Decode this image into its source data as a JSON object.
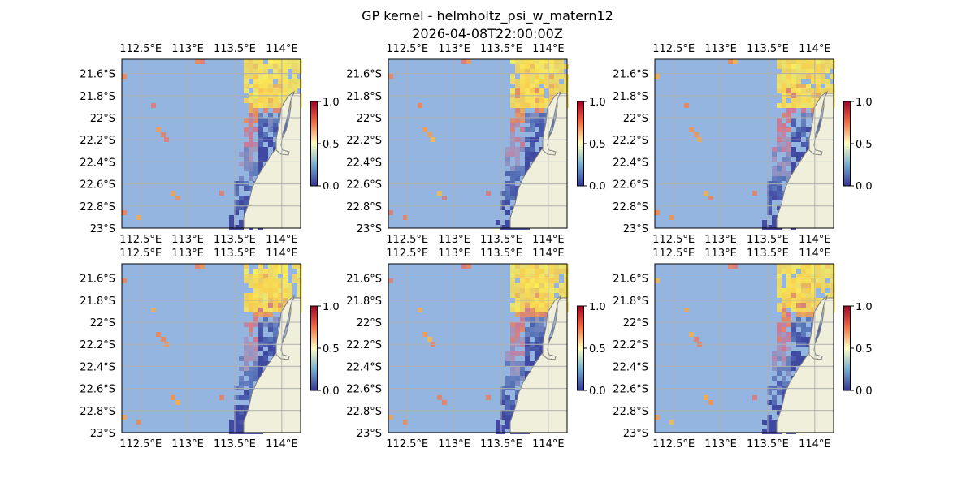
{
  "figure": {
    "title_line1": "GP kernel - helmholtz_psi_w_matern12",
    "title_line2": "2026-04-08T22:00:00Z"
  },
  "map": {
    "lon_range": [
      112.3,
      114.2
    ],
    "lat_range": [
      -23.0,
      -21.47
    ],
    "lon_ticks": [
      "112.5°E",
      "113°E",
      "113.5°E",
      "114°E"
    ],
    "lon_tick_values": [
      112.5,
      113.0,
      113.5,
      114.0
    ],
    "lat_ticks": [
      "21.6°S",
      "21.8°S",
      "22°S",
      "22.2°S",
      "22.4°S",
      "22.6°S",
      "22.8°S",
      "23°S"
    ],
    "lat_tick_values": [
      -21.6,
      -21.8,
      -22.0,
      -22.2,
      -22.4,
      -22.6,
      -22.8,
      -23.0
    ],
    "ocean_color": "#94b5e0",
    "land_color": "#efefdc",
    "gridline_color": "#b0b0b0"
  },
  "colorbar": {
    "ticks": [
      "0.0",
      "0.5",
      "1.0"
    ],
    "tick_values": [
      0.0,
      0.5,
      1.0
    ],
    "range": [
      0.0,
      1.0
    ],
    "colormap": "RdYlBu_r"
  },
  "panels": [
    {
      "row": 0,
      "col": 0
    },
    {
      "row": 0,
      "col": 1
    },
    {
      "row": 0,
      "col": 2
    },
    {
      "row": 1,
      "col": 0
    },
    {
      "row": 1,
      "col": 1
    },
    {
      "row": 1,
      "col": 2
    }
  ]
}
